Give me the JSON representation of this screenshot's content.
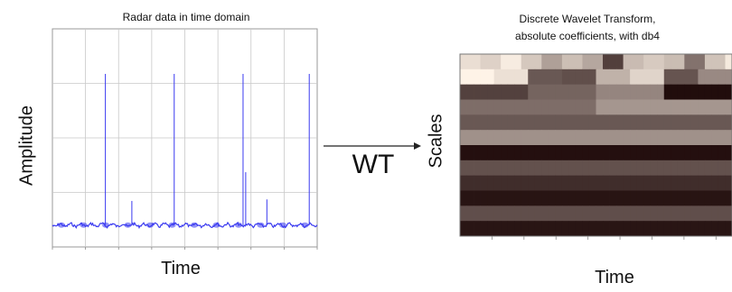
{
  "left_panel": {
    "title": "Radar data in time domain",
    "xlabel": "Time",
    "ylabel": "Amplitude"
  },
  "arrow": {
    "label": "WT"
  },
  "right_panel": {
    "title_line1": "Discrete Wavelet Transform,",
    "title_line2": "absolute coefficients, with db4",
    "xlabel": "Time",
    "ylabel": "Scales"
  },
  "colors": {
    "signal": "#3a3af0",
    "grid": "#c8c8c8",
    "heat_dark": "#1a0505",
    "heat_light": "#fff4e8"
  },
  "chart_data": [
    {
      "type": "line",
      "title": "Radar data in time domain",
      "xlabel": "Time",
      "ylabel": "Amplitude",
      "grid": true,
      "baseline": 0.1,
      "spikes": [
        {
          "position": 0.2,
          "height": 1.0
        },
        {
          "position": 0.3,
          "height": 0.16
        },
        {
          "position": 0.46,
          "height": 1.0
        },
        {
          "position": 0.72,
          "height": 1.0
        },
        {
          "position": 0.73,
          "height": 0.35
        },
        {
          "position": 0.81,
          "height": 0.17
        },
        {
          "position": 0.97,
          "height": 1.0
        }
      ]
    },
    {
      "type": "heatmap",
      "title": "Discrete Wavelet Transform, absolute coefficients, with db4",
      "xlabel": "Time",
      "ylabel": "Scales",
      "rows": 12,
      "columns": 40,
      "notes": "absolute coefficient magnitudes shown on dark-to-light copper scale"
    }
  ]
}
